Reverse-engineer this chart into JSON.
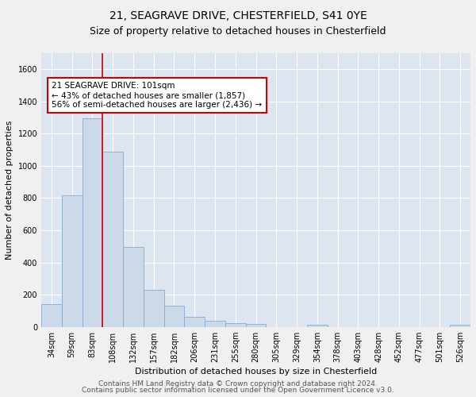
{
  "title1": "21, SEAGRAVE DRIVE, CHESTERFIELD, S41 0YE",
  "title2": "Size of property relative to detached houses in Chesterfield",
  "xlabel": "Distribution of detached houses by size in Chesterfield",
  "ylabel": "Number of detached properties",
  "bar_color": "#ccd9e8",
  "bar_edge_color": "#88aacc",
  "background_color": "#dde6f0",
  "grid_color": "#ffffff",
  "annotation_line_color": "#cc0000",
  "annotation_box_edge": "#cc0000",
  "categories": [
    "34sqm",
    "59sqm",
    "83sqm",
    "108sqm",
    "132sqm",
    "157sqm",
    "182sqm",
    "206sqm",
    "231sqm",
    "255sqm",
    "280sqm",
    "305sqm",
    "329sqm",
    "354sqm",
    "378sqm",
    "403sqm",
    "428sqm",
    "452sqm",
    "477sqm",
    "501sqm",
    "526sqm"
  ],
  "values": [
    140,
    815,
    1295,
    1090,
    495,
    230,
    130,
    65,
    37,
    25,
    17,
    0,
    0,
    14,
    0,
    0,
    0,
    0,
    0,
    0,
    13
  ],
  "ylim": [
    0,
    1700
  ],
  "yticks": [
    0,
    200,
    400,
    600,
    800,
    1000,
    1200,
    1400,
    1600
  ],
  "property_label": "21 SEAGRAVE DRIVE: 101sqm",
  "annotation_smaller": "← 43% of detached houses are smaller (1,857)",
  "annotation_larger": "56% of semi-detached houses are larger (2,436) →",
  "footer1": "Contains HM Land Registry data © Crown copyright and database right 2024.",
  "footer2": "Contains public sector information licensed under the Open Government Licence v3.0.",
  "title1_fontsize": 10,
  "title2_fontsize": 9,
  "xlabel_fontsize": 8,
  "ylabel_fontsize": 8,
  "tick_fontsize": 7,
  "footer_fontsize": 6.5,
  "annotation_fontsize": 7.5
}
